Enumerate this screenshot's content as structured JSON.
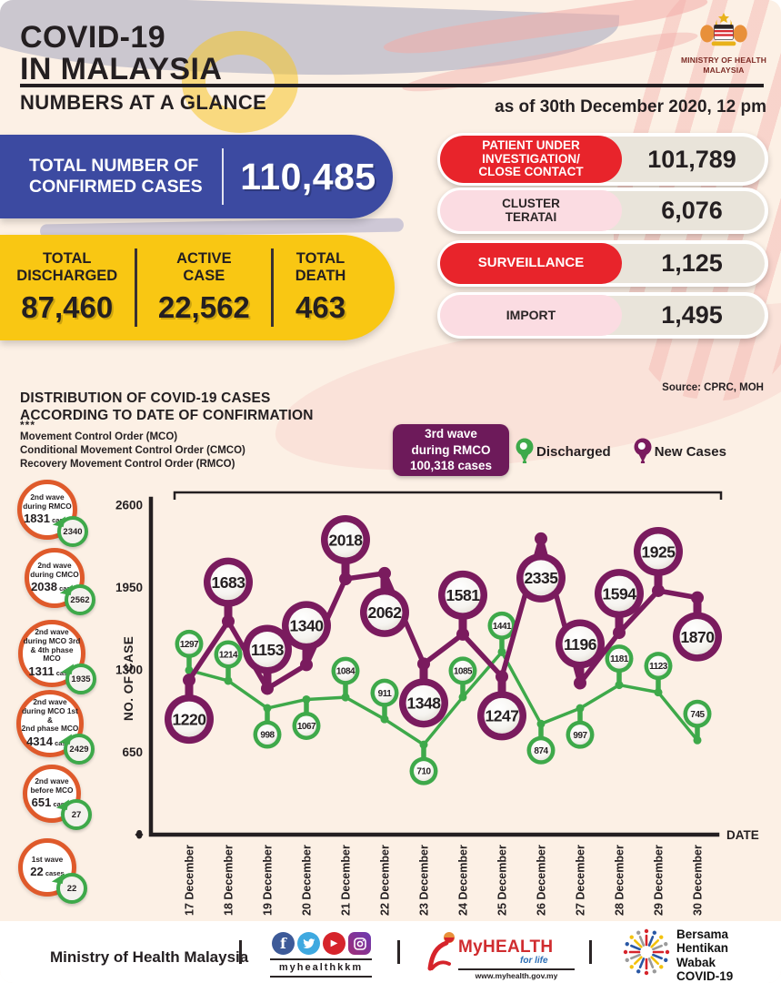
{
  "header": {
    "title_line1": "COVID-19",
    "title_line2": "IN MALAYSIA",
    "subtitle": "NUMBERS AT A GLANCE",
    "as_of": "as of 30th December 2020, 12 pm",
    "ministry_line1": "MINISTRY OF HEALTH",
    "ministry_line2": "MALAYSIA"
  },
  "summary": {
    "confirmed": {
      "label_line1": "TOTAL NUMBER OF",
      "label_line2": "CONFIRMED CASES",
      "value": "110,485"
    },
    "totals": [
      {
        "label_lines": [
          "TOTAL",
          "DISCHARGED"
        ],
        "value": "87,460"
      },
      {
        "label_lines": [
          "ACTIVE",
          "CASE"
        ],
        "value": "22,562"
      },
      {
        "label_lines": [
          "TOTAL",
          "DEATH"
        ],
        "value": "463"
      }
    ],
    "stats": [
      {
        "label_lines": [
          "PATIENT UNDER",
          "INVESTIGATION/",
          "CLOSE CONTACT"
        ],
        "value": "101,789",
        "style": "red"
      },
      {
        "label_lines": [
          "CLUSTER",
          "TERATAI"
        ],
        "value": "6,076",
        "style": "pink"
      },
      {
        "label_lines": [
          "SURVEILLANCE"
        ],
        "value": "1,125",
        "style": "red"
      },
      {
        "label_lines": [
          "IMPORT"
        ],
        "value": "1,495",
        "style": "pink"
      }
    ]
  },
  "chart_section": {
    "title_line1": "DISTRIBUTION OF COVID-19 CASES",
    "title_line2": "ACCORDING TO DATE OF CONFIRMATION",
    "stars": "***",
    "notes": [
      "Movement Control Order (MCO)",
      "Conditional Movement Control Order (CMCO)",
      "Recovery Movement Control Order (RMCO)"
    ],
    "source": "Source: CPRC, MOH",
    "wave_badge_lines": [
      "3rd wave",
      "during RMCO",
      "100,318 cases"
    ],
    "legend": [
      {
        "label": "Discharged",
        "color": "#3ea94a"
      },
      {
        "label": "New Cases",
        "color": "#7a1b5e"
      }
    ]
  },
  "waves": [
    {
      "lines": [
        "2nd wave",
        "during RMCO"
      ],
      "num": "1831",
      "word": "cases",
      "badge": "2340"
    },
    {
      "lines": [
        "2nd wave",
        "during CMCO"
      ],
      "num": "2038",
      "word": "cases",
      "badge": "2562"
    },
    {
      "lines": [
        "2nd wave",
        "during MCO 3rd",
        "& 4th phase MCO"
      ],
      "num": "1311",
      "word": "cases",
      "badge": "1935"
    },
    {
      "lines": [
        "2nd wave",
        "during MCO 1st &",
        "2nd phase MCO"
      ],
      "num": "4314",
      "word": "cases",
      "badge": "2429"
    },
    {
      "lines": [
        "2nd wave",
        "before MCO"
      ],
      "num": "651",
      "word": "cases",
      "badge": "27"
    },
    {
      "lines": [
        "1st wave"
      ],
      "num": "22",
      "word": "cases",
      "badge": "22"
    }
  ],
  "chart_data": {
    "type": "line",
    "x": [
      "17 December",
      "18 December",
      "19 December",
      "20 December",
      "21 December",
      "22 December",
      "23 December",
      "24 December",
      "25 December",
      "26 December",
      "27 December",
      "28 December",
      "29 December",
      "30 December"
    ],
    "xlabel": "DATE",
    "ylabel": "NO. OF CASE",
    "yticks": [
      0,
      650,
      1300,
      1950,
      2600
    ],
    "ylim": [
      0,
      2600
    ],
    "grid": false,
    "legend_position": "top",
    "series": [
      {
        "name": "Discharged",
        "color": "#3ea94a",
        "values": [
          1297,
          1214,
          998,
          1067,
          1084,
          911,
          710,
          1085,
          1441,
          874,
          997,
          1181,
          1123,
          745
        ],
        "label_pos": [
          "above",
          "above",
          "below",
          "below",
          "above",
          "above",
          "below",
          "above",
          "above",
          "below",
          "below",
          "above",
          "above",
          "above"
        ]
      },
      {
        "name": "New Cases",
        "color": "#7a1b5e",
        "values": [
          1220,
          1683,
          1153,
          1340,
          2018,
          2062,
          1348,
          1581,
          1247,
          2335,
          1196,
          1594,
          1925,
          1870
        ],
        "label_pos": [
          "below",
          "above",
          "above",
          "above",
          "above",
          "below",
          "below",
          "above",
          "below",
          "below",
          "above",
          "above",
          "above",
          "below"
        ]
      }
    ],
    "annotation_bracket": "3rd wave during RMCO span (17-30 December)"
  },
  "footer": {
    "ministry": "Ministry of Health Malaysia",
    "social_icons": [
      "facebook-icon",
      "twitter-icon",
      "youtube-icon",
      "instagram-icon"
    ],
    "social_handle": "myhealthkkm",
    "myhealth_name": "MyHEALTH",
    "myhealth_tagline": "for life",
    "myhealth_url": "www.myhealth.gov.my",
    "campaign_lines": [
      "Bersama",
      "Hentikan",
      "Wabak",
      "COVID-19"
    ]
  },
  "colors": {
    "background": "#fcf0e5",
    "ink": "#241f21",
    "blue": "#3c4aa1",
    "yellow": "#f9c713",
    "red": "#e8242b",
    "pink": "#fbdce2",
    "beige": "#e9e4da",
    "purple": "#7a1b5e",
    "green": "#3ea94a",
    "orange_ring": "#df5a2b",
    "badge_purple": "#6d1a5a"
  }
}
